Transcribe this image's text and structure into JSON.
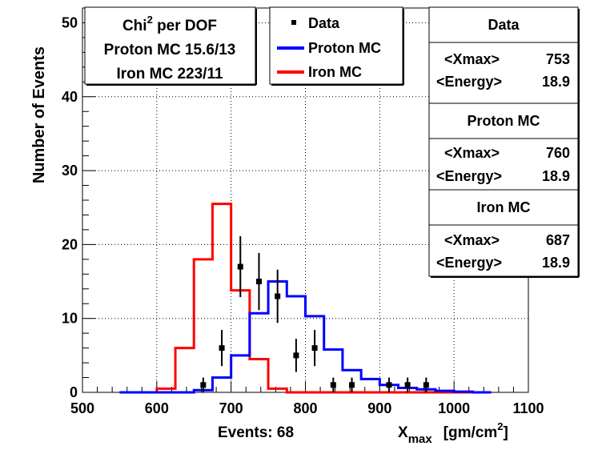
{
  "chart_data": {
    "type": "histogram",
    "xlabel_main": "X",
    "xlabel_sub": "max",
    "xlabel_unit": "[gm/cm",
    "xlabel_unit_sup": "2",
    "xlabel_unit_end": "]",
    "ylabel": "Number of Events",
    "xlim": [
      500,
      1100
    ],
    "ylim": [
      0,
      52
    ],
    "x_ticks": [
      500,
      600,
      700,
      800,
      900,
      1000,
      1100
    ],
    "y_ticks": [
      0,
      10,
      20,
      30,
      40,
      50
    ],
    "events_label": "Events: 68",
    "data_points": [
      {
        "x": 662.5,
        "y": 1,
        "err": 1.0
      },
      {
        "x": 687.5,
        "y": 6,
        "err": 2.45
      },
      {
        "x": 712.5,
        "y": 17,
        "err": 4.12
      },
      {
        "x": 737.5,
        "y": 15,
        "err": 3.87
      },
      {
        "x": 762.5,
        "y": 13,
        "err": 3.6
      },
      {
        "x": 787.5,
        "y": 5,
        "err": 2.24
      },
      {
        "x": 812.5,
        "y": 6,
        "err": 2.45
      },
      {
        "x": 837.5,
        "y": 1,
        "err": 1.0
      },
      {
        "x": 862.5,
        "y": 1,
        "err": 1.0
      },
      {
        "x": 912.5,
        "y": 1,
        "err": 1.0
      },
      {
        "x": 937.5,
        "y": 1,
        "err": 1.0
      },
      {
        "x": 962.5,
        "y": 1,
        "err": 1.0
      }
    ],
    "proton_mc": {
      "name": "Proton MC",
      "color": "#0000ff",
      "bin_edges": [
        550,
        575,
        600,
        625,
        650,
        675,
        700,
        725,
        750,
        775,
        800,
        825,
        850,
        875,
        900,
        925,
        950,
        975,
        1000,
        1025,
        1050
      ],
      "values": [
        0,
        0,
        0,
        0,
        0.3,
        2,
        5,
        10.7,
        15,
        13,
        10.3,
        5.8,
        3,
        1.8,
        1,
        0.6,
        0.4,
        0.2,
        0.1,
        0
      ]
    },
    "iron_mc": {
      "name": "Iron MC",
      "color": "#ff0000",
      "bin_edges": [
        550,
        575,
        600,
        625,
        650,
        675,
        700,
        725,
        750,
        775,
        800,
        825,
        850,
        875,
        900,
        925,
        950,
        975,
        1000,
        1025,
        1050
      ],
      "values": [
        0,
        0,
        0.5,
        6,
        18,
        25.5,
        13.8,
        4.5,
        0.5,
        0,
        0,
        0,
        0,
        0,
        0,
        0,
        0,
        0,
        0,
        0
      ]
    },
    "legend": {
      "data_label": "Data",
      "proton_label": "Proton MC",
      "iron_label": "Iron MC"
    },
    "chi2_box": {
      "title_pre": "Chi",
      "title_sup": "2",
      "title_post": " per DOF",
      "proton_line": "Proton MC 15.6/13",
      "iron_line": "Iron MC 223/11"
    },
    "stats": [
      {
        "title": "Data",
        "xmax_label": "<Xmax>",
        "xmax_value": "753",
        "energy_label": "<Energy>",
        "energy_value": "18.9"
      },
      {
        "title": "Proton MC",
        "xmax_label": "<Xmax>",
        "xmax_value": "760",
        "energy_label": "<Energy>",
        "energy_value": "18.9"
      },
      {
        "title": "Iron MC",
        "xmax_label": "<Xmax>",
        "xmax_value": "687",
        "energy_label": "<Energy>",
        "energy_value": "18.9"
      }
    ]
  }
}
